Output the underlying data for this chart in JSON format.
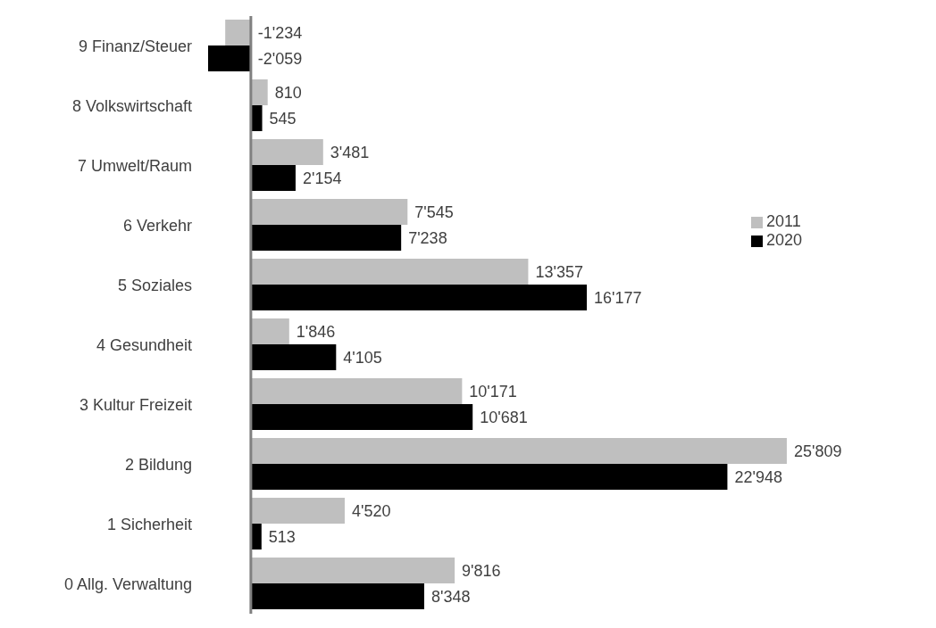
{
  "chart_data": {
    "type": "bar",
    "orientation": "horizontal",
    "categories": [
      "9 Finanz/Steuer",
      "8 Volkswirtschaft",
      "7 Umwelt/Raum",
      "6 Verkehr",
      "5 Soziales",
      "4 Gesundheit",
      "3 Kultur Freizeit",
      "2 Bildung",
      "1 Sicherheit",
      "0 Allg. Verwaltung"
    ],
    "series": [
      {
        "name": "2011",
        "color": "#bfbfbf",
        "values": [
          -1234,
          810,
          3481,
          7545,
          13357,
          1846,
          10171,
          25809,
          4520,
          9816
        ],
        "value_labels": [
          "-1'234",
          "810",
          "3'481",
          "7'545",
          "13'357",
          "1'846",
          "10'171",
          "25'809",
          "4'520",
          "9'816"
        ]
      },
      {
        "name": "2020",
        "color": "#000000",
        "values": [
          -2059,
          545,
          2154,
          7238,
          16177,
          4105,
          10681,
          22948,
          513,
          8348
        ],
        "value_labels": [
          "-2'059",
          "545",
          "2'154",
          "7'238",
          "16'177",
          "4'105",
          "10'681",
          "22'948",
          "513",
          "8'348"
        ]
      }
    ],
    "legend": "right"
  }
}
